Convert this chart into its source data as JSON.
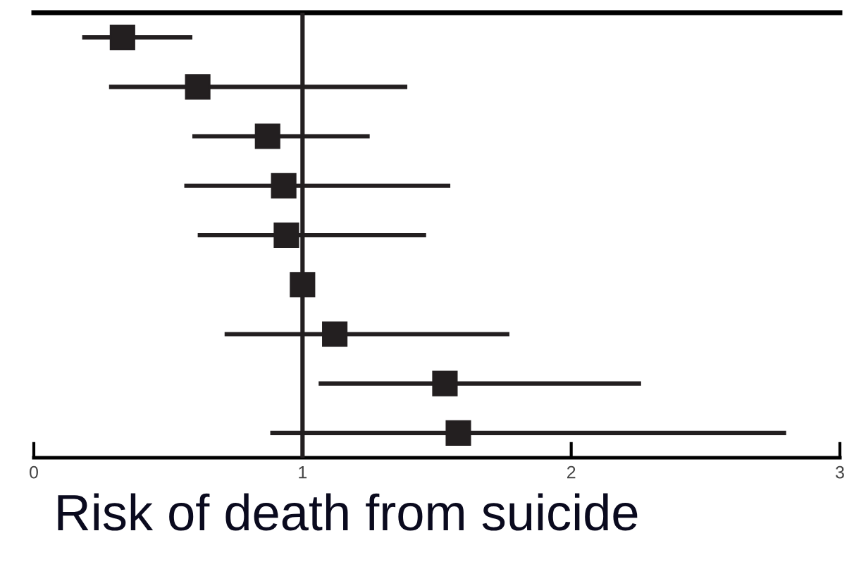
{
  "chart_data": {
    "type": "scatter",
    "orientation": "horizontal",
    "xlabel": "Risk of death from suicide",
    "categories": [
      null,
      null,
      null,
      null,
      null,
      null,
      null,
      null,
      null
    ],
    "values": [
      0.33,
      0.61,
      0.87,
      0.93,
      0.94,
      1.0,
      1.12,
      1.53,
      1.58
    ],
    "errors": [
      [
        0.18,
        0.59
      ],
      [
        0.28,
        1.39
      ],
      [
        0.59,
        1.25
      ],
      [
        0.56,
        1.55
      ],
      [
        0.61,
        1.46
      ],
      null,
      [
        0.71,
        1.77
      ],
      [
        1.06,
        2.26
      ],
      [
        0.88,
        2.8
      ]
    ],
    "color": "#231f20",
    "marker": "square",
    "xlim": [
      0,
      3
    ],
    "xticks": [
      0,
      1,
      2,
      3
    ],
    "ref_lines": [
      {
        "axis": "x",
        "value": 1,
        "color": "#231f20"
      }
    ],
    "grid": false,
    "legend": false,
    "tick_labels": "x"
  }
}
